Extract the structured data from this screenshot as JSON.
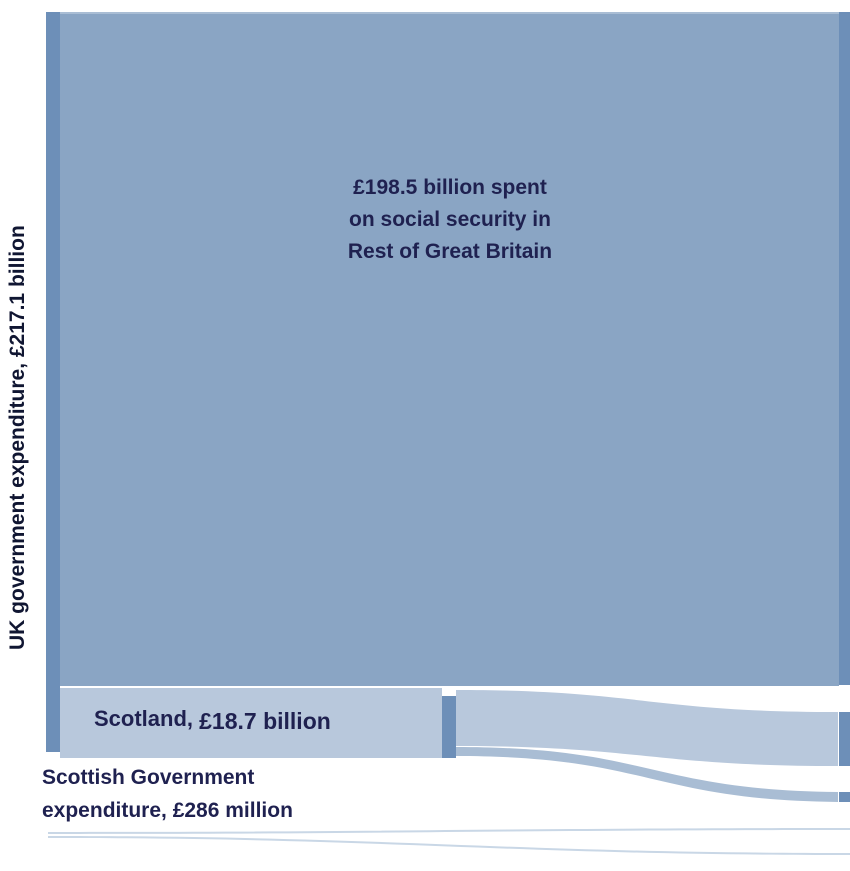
{
  "labels": {
    "uk_total": "UK government expenditure, £217.1 billion",
    "rest_of_gb_line1": "£198.5 billion spent",
    "rest_of_gb_line2": "on social security in",
    "rest_of_gb_line3": "Rest of Great Britain",
    "scotland_name": "Scotland,",
    "scotland_value": "£18.7 billion",
    "scottish_gov_line1": "Scottish Government",
    "scottish_gov_line2": "expenditure, £286 million"
  },
  "flows": {
    "uk_total_bn": 217.1,
    "rest_of_gb_bn": 198.5,
    "scotland_bn": 18.7,
    "scottish_gov_m": 286
  },
  "colors": {
    "node": "#6d8fb8",
    "main_flow": "#8aa5c4",
    "scotland_flow": "#b8c8dc",
    "minor_flow": "#c9d7e6"
  }
}
